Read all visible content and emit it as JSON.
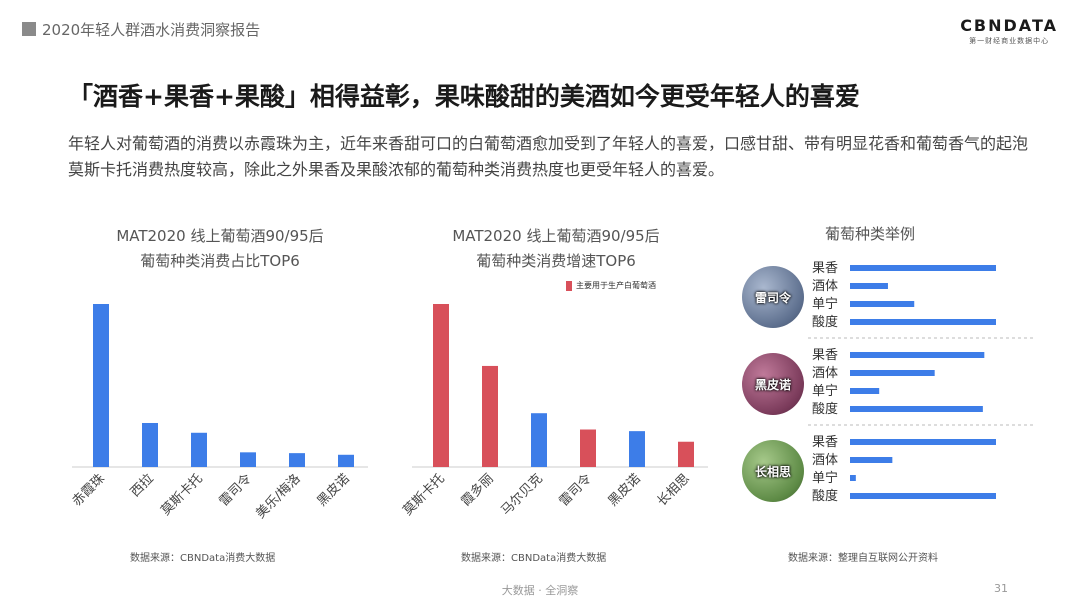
{
  "header": {
    "report_title": "2020年轻人群酒水消费洞察报告"
  },
  "logo": {
    "main": "CBNDATA",
    "sub": "第一财经商业数据中心"
  },
  "title": "「酒香+果香+果酸」相得益彰，果味酸甜的美酒如今更受年轻人的喜爱",
  "description": "年轻人对葡萄酒的消费以赤霞珠为主，近年来香甜可口的白葡萄酒愈加受到了年轻人的喜爱，口感甘甜、带有明显花香和葡萄香气的起泡莫斯卡托消费热度较高，除此之外果香及果酸浓郁的葡萄种类消费热度也更受年轻人的喜爱。",
  "colors": {
    "blue": "#3d7de8",
    "red": "#d8505a",
    "axis": "#cccccc"
  },
  "chart_data": [
    {
      "type": "bar",
      "title": "MAT2020 线上葡萄酒90/95后\n葡萄种类消费占比TOP6",
      "title_lines": [
        "MAT2020 线上葡萄酒90/95后",
        "葡萄种类消费占比TOP6"
      ],
      "categories": [
        "赤霞珠",
        "西拉",
        "莫斯卡托",
        "雷司令",
        "美乐/梅洛",
        "黑皮诺"
      ],
      "values": [
        100,
        27,
        21,
        9,
        8.5,
        7.5
      ],
      "ylim": [
        0,
        100
      ],
      "highlight": [
        false,
        false,
        false,
        false,
        false,
        false
      ],
      "source": "数据来源：CBNData消费大数据"
    },
    {
      "type": "bar",
      "title": "MAT2020 线上葡萄酒90/95后\n葡萄种类消费增速TOP6",
      "title_lines": [
        "MAT2020 线上葡萄酒90/95后",
        "葡萄种类消费增速TOP6"
      ],
      "categories": [
        "莫斯卡托",
        "霞多丽",
        "马尔贝克",
        "雷司令",
        "黑皮诺",
        "长相思"
      ],
      "values": [
        100,
        62,
        33,
        23,
        22,
        15.5
      ],
      "ylim": [
        0,
        100
      ],
      "highlight": [
        true,
        true,
        false,
        true,
        false,
        true
      ],
      "legend": "主要用于生产白葡萄酒",
      "source": "数据来源：CBNData消费大数据"
    },
    {
      "type": "bar",
      "orientation": "horizontal",
      "title": "葡萄种类举例",
      "attributes": [
        "果香",
        "酒体",
        "单宁",
        "酸度"
      ],
      "groups": [
        {
          "name": "雷司令",
          "values": [
            100,
            26,
            44,
            100
          ],
          "color": "#7e93b5"
        },
        {
          "name": "黑皮诺",
          "values": [
            92,
            58,
            20,
            91
          ],
          "color": "#8a4a6a"
        },
        {
          "name": "长相思",
          "values": [
            100,
            29,
            4,
            100
          ],
          "color": "#6f9a58"
        }
      ],
      "source": "数据来源：整理自互联网公开资料"
    }
  ],
  "footer": {
    "text": "大数据 · 全洞察",
    "page": "31"
  }
}
